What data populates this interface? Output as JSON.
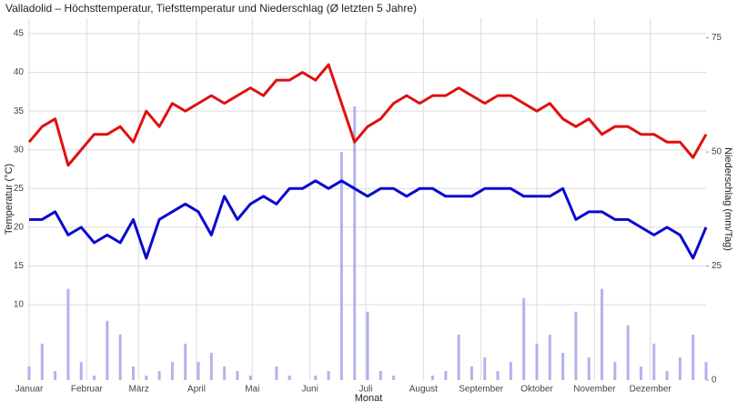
{
  "chart_data": {
    "type": "line",
    "title": "Valladolid – Höchsttemperatur, Tiefsttemperatur und Niederschlag (Ø letzten 5 Jahre)",
    "x_label": "Monat",
    "y_label": "Temperatur (°C)",
    "y2_label": "Niederschlag (mm/Tag)",
    "x": [
      1,
      8,
      15,
      22,
      29,
      36,
      43,
      50,
      57,
      64,
      71,
      78,
      85,
      92,
      99,
      106,
      113,
      120,
      127,
      134,
      141,
      148,
      155,
      162,
      169,
      176,
      183,
      190,
      197,
      204,
      211,
      218,
      225,
      232,
      239,
      246,
      253,
      260,
      267,
      274,
      281,
      288,
      295,
      302,
      309,
      316,
      323,
      330,
      337,
      344,
      351,
      358,
      365
    ],
    "series": [
      {
        "name": "Höchsttemperatur",
        "color": "#e01010",
        "values": [
          31,
          33,
          34,
          28,
          30,
          32,
          32,
          33,
          31,
          35,
          33,
          36,
          35,
          36,
          37,
          36,
          37,
          38,
          37,
          39,
          39,
          40,
          39,
          41,
          36,
          31,
          33,
          34,
          36,
          37,
          36,
          37,
          37,
          38,
          37,
          36,
          37,
          37,
          36,
          35,
          36,
          34,
          33,
          34,
          32,
          33,
          33,
          32,
          32,
          31,
          31,
          29,
          32
        ]
      },
      {
        "name": "Tiefsttemperatur",
        "color": "#0a0ad0",
        "values": [
          21,
          21,
          22,
          19,
          20,
          18,
          19,
          18,
          21,
          16,
          21,
          22,
          23,
          22,
          19,
          24,
          21,
          23,
          24,
          23,
          25,
          25,
          26,
          25,
          26,
          25,
          24,
          25,
          25,
          24,
          25,
          25,
          24,
          24,
          24,
          25,
          25,
          25,
          24,
          24,
          24,
          25,
          21,
          22,
          22,
          21,
          21,
          20,
          19,
          20,
          19,
          16,
          20
        ]
      },
      {
        "name": "Niederschlag",
        "type": "bar",
        "axis": "y2",
        "color": "#b3b3ec",
        "values": [
          3,
          8,
          2,
          20,
          4,
          1,
          13,
          10,
          3,
          1,
          2,
          4,
          8,
          4,
          6,
          3,
          2,
          1,
          0,
          3,
          1,
          0,
          1,
          2,
          50,
          60,
          15,
          2,
          1,
          0,
          0,
          1,
          2,
          10,
          3,
          5,
          2,
          4,
          18,
          8,
          10,
          6,
          15,
          5,
          20,
          4,
          12,
          3,
          8,
          2,
          5,
          10,
          4
        ]
      }
    ],
    "xlim": [
      1,
      365
    ],
    "xticks": [
      {
        "value": 1,
        "label": "Januar"
      },
      {
        "value": 32,
        "label": "Februar"
      },
      {
        "value": 60,
        "label": "März"
      },
      {
        "value": 91,
        "label": "April"
      },
      {
        "value": 121,
        "label": "Mai"
      },
      {
        "value": 152,
        "label": "Juni"
      },
      {
        "value": 182,
        "label": "Juli"
      },
      {
        "value": 213,
        "label": "August"
      },
      {
        "value": 244,
        "label": "September"
      },
      {
        "value": 274,
        "label": "Oktober"
      },
      {
        "value": 305,
        "label": "November"
      },
      {
        "value": 335,
        "label": "Dezember"
      }
    ],
    "ylim": [
      0.25,
      47
    ],
    "yticks": [
      10,
      15,
      20,
      25,
      30,
      35,
      40,
      45
    ],
    "y2lim": [
      0,
      79.3
    ],
    "y2ticks": [
      0,
      25,
      50,
      75
    ],
    "grid": true
  }
}
